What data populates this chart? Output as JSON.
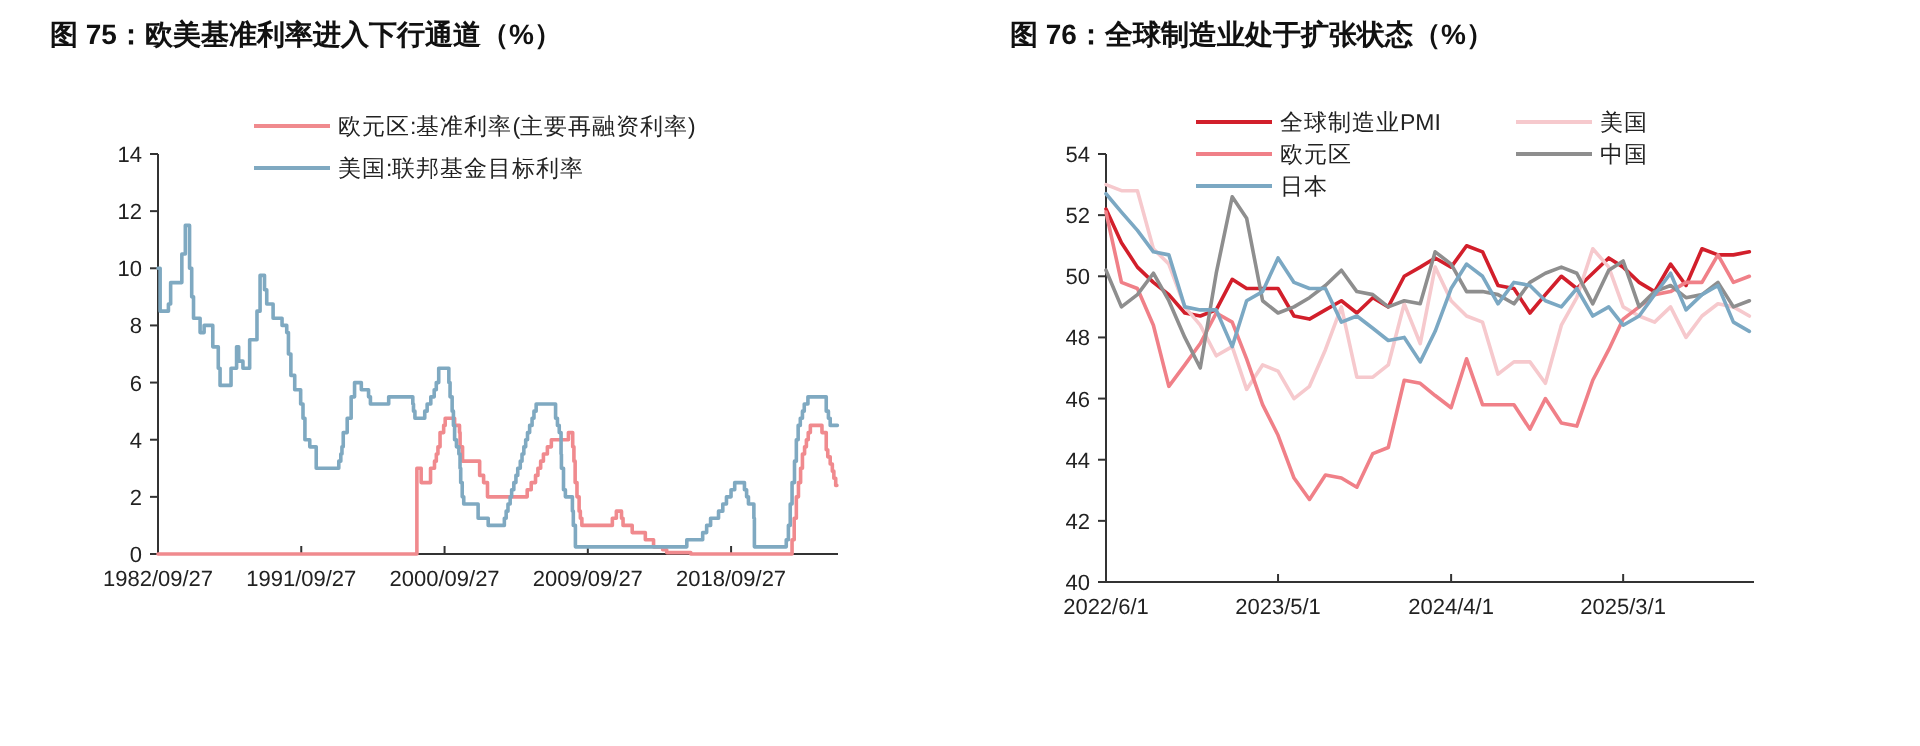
{
  "chart_data": [
    {
      "type": "step",
      "title": "图 75：欧美基准利率进入下行通道（%）",
      "legend": "top",
      "xlim": [
        "1982-09-27",
        "2025-06-15"
      ],
      "ylim": [
        0,
        14
      ],
      "yticks": [
        0,
        2,
        4,
        6,
        8,
        10,
        12,
        14
      ],
      "xticks": [
        {
          "value": "1982-09-27",
          "label": "1982/09/27"
        },
        {
          "value": "1991-09-27",
          "label": "1991/09/27"
        },
        {
          "value": "2000-09-27",
          "label": "2000/09/27"
        },
        {
          "value": "2009-09-27",
          "label": "2009/09/27"
        },
        {
          "value": "2018-09-27",
          "label": "2018/09/27"
        }
      ],
      "series": [
        {
          "name": "欧元区:基准利率(主要再融资利率)",
          "color": "#f08a8e",
          "x": [
            "1982-09-27",
            "1999-01-01",
            "1999-04-09",
            "1999-11-10",
            "2000-02-09",
            "2000-03-22",
            "2000-04-28",
            "2000-06-15",
            "2000-09-06",
            "2000-10-11",
            "2001-05-15",
            "2001-09-05",
            "2001-09-18",
            "2001-11-14",
            "2002-12-11",
            "2003-03-12",
            "2003-06-09",
            "2005-12-06",
            "2006-03-08",
            "2006-06-15",
            "2006-08-09",
            "2006-10-11",
            "2006-12-13",
            "2007-03-14",
            "2007-06-13",
            "2008-07-09",
            "2008-10-15",
            "2008-11-12",
            "2008-12-10",
            "2009-01-21",
            "2009-03-11",
            "2009-04-08",
            "2009-05-13",
            "2011-04-13",
            "2011-07-13",
            "2011-11-09",
            "2011-12-14",
            "2012-07-11",
            "2013-05-08",
            "2013-11-13",
            "2014-06-11",
            "2014-09-10",
            "2016-03-16",
            "2022-07-27",
            "2022-09-14",
            "2022-11-02",
            "2022-12-21",
            "2023-02-08",
            "2023-03-22",
            "2023-05-10",
            "2023-06-21",
            "2023-08-02",
            "2023-09-20",
            "2024-06-12",
            "2024-09-18",
            "2024-10-23",
            "2024-12-18",
            "2025-02-05",
            "2025-03-12",
            "2025-04-23",
            "2025-05-20"
          ],
          "values": [
            0,
            3.0,
            2.5,
            3.0,
            3.25,
            3.5,
            3.75,
            4.25,
            4.5,
            4.75,
            4.5,
            4.25,
            3.75,
            3.25,
            2.75,
            2.5,
            2.0,
            2.25,
            2.5,
            2.75,
            3.0,
            3.25,
            3.5,
            3.75,
            4.0,
            4.25,
            3.75,
            3.25,
            2.5,
            2.0,
            1.5,
            1.25,
            1.0,
            1.25,
            1.5,
            1.25,
            1.0,
            0.75,
            0.5,
            0.25,
            0.15,
            0.05,
            0,
            0.5,
            1.25,
            2.0,
            2.5,
            3.0,
            3.5,
            3.75,
            4.0,
            4.25,
            4.5,
            4.25,
            3.65,
            3.4,
            3.15,
            2.9,
            2.65,
            2.4,
            2.4
          ]
        },
        {
          "name": "美国:联邦基金目标利率",
          "color": "#7fa9c1",
          "x": [
            "1982-09-27",
            "1982-11-15",
            "1983-05-24",
            "1983-07-14",
            "1984-03-27",
            "1984-06-15",
            "1984-09-20",
            "1984-11-08",
            "1984-12-20",
            "1985-05-20",
            "1985-08-20",
            "1986-03-07",
            "1986-07-11",
            "1986-08-21",
            "1987-04-30",
            "1987-09-04",
            "1987-10-22",
            "1988-01-28",
            "1988-06-30",
            "1988-12-15",
            "1989-02-24",
            "1989-06-06",
            "1989-07-27",
            "1989-12-20",
            "1990-07-13",
            "1990-10-29",
            "1990-12-07",
            "1991-02-01",
            "1991-04-30",
            "1991-09-13",
            "1991-11-06",
            "1991-12-20",
            "1992-04-09",
            "1992-09-04",
            "1994-02-04",
            "1994-03-22",
            "1994-04-18",
            "1994-05-17",
            "1994-08-16",
            "1994-11-15",
            "1995-02-01",
            "1995-07-06",
            "1995-12-19",
            "1996-01-31",
            "1997-03-25",
            "1998-09-29",
            "1998-10-15",
            "1998-11-17",
            "1999-06-30",
            "1999-08-24",
            "1999-11-16",
            "2000-02-02",
            "2000-03-21",
            "2000-05-16",
            "2001-01-03",
            "2001-01-31",
            "2001-03-20",
            "2001-04-18",
            "2001-05-15",
            "2001-06-27",
            "2001-08-21",
            "2001-09-17",
            "2001-10-02",
            "2001-11-06",
            "2001-12-11",
            "2002-11-06",
            "2003-06-25",
            "2004-06-30",
            "2004-08-10",
            "2004-09-21",
            "2004-11-10",
            "2004-12-14",
            "2005-02-02",
            "2005-03-22",
            "2005-05-03",
            "2005-06-30",
            "2005-08-09",
            "2005-09-20",
            "2005-11-01",
            "2005-12-13",
            "2006-01-31",
            "2006-03-28",
            "2006-05-10",
            "2006-06-29",
            "2007-09-18",
            "2007-10-31",
            "2007-12-11",
            "2008-01-22",
            "2008-01-30",
            "2008-03-18",
            "2008-04-30",
            "2008-10-08",
            "2008-10-29",
            "2008-12-16",
            "2015-12-16",
            "2016-12-14",
            "2017-03-15",
            "2017-06-14",
            "2017-12-13",
            "2018-03-21",
            "2018-06-13",
            "2018-09-26",
            "2018-12-19",
            "2019-07-31",
            "2019-09-18",
            "2019-10-30",
            "2020-03-03",
            "2020-03-15",
            "2022-03-16",
            "2022-05-04",
            "2022-06-15",
            "2022-07-27",
            "2022-09-21",
            "2022-11-02",
            "2022-12-14",
            "2023-02-01",
            "2023-03-22",
            "2023-05-03",
            "2023-07-26",
            "2024-09-18",
            "2024-11-07",
            "2024-12-18",
            "2025-06-01"
          ],
          "values": [
            10.0,
            8.5,
            8.75,
            9.5,
            10.5,
            11.5,
            10.0,
            9.0,
            8.25,
            7.75,
            8.0,
            7.25,
            6.5,
            5.9,
            6.5,
            7.25,
            6.75,
            6.5,
            7.5,
            8.5,
            9.75,
            9.25,
            8.75,
            8.25,
            8.0,
            7.75,
            7.0,
            6.25,
            5.75,
            5.25,
            4.75,
            4.0,
            3.75,
            3.0,
            3.25,
            3.5,
            3.75,
            4.25,
            4.75,
            5.5,
            6.0,
            5.75,
            5.5,
            5.25,
            5.5,
            5.25,
            5.0,
            4.75,
            5.0,
            5.25,
            5.5,
            5.75,
            6.0,
            6.5,
            6.0,
            5.5,
            5.0,
            4.5,
            4.0,
            3.75,
            3.5,
            3.0,
            2.5,
            2.0,
            1.75,
            1.25,
            1.0,
            1.25,
            1.5,
            1.75,
            2.0,
            2.25,
            2.5,
            2.75,
            3.0,
            3.25,
            3.5,
            3.75,
            4.0,
            4.25,
            4.5,
            4.75,
            5.0,
            5.25,
            4.75,
            4.5,
            4.25,
            3.5,
            3.0,
            2.25,
            2.0,
            1.5,
            1.0,
            0.25,
            0.5,
            0.75,
            1.0,
            1.25,
            1.5,
            1.75,
            2.0,
            2.25,
            2.5,
            2.25,
            2.0,
            1.75,
            1.25,
            0.25,
            0.5,
            1.0,
            1.75,
            2.5,
            3.25,
            4.0,
            4.5,
            4.75,
            5.0,
            5.25,
            5.5,
            5.0,
            4.75,
            4.5,
            4.5
          ]
        }
      ]
    },
    {
      "type": "line",
      "title": "图 76：全球制造业处于扩张状态（%）",
      "legend": "top",
      "xlim": [
        "2022-06-01",
        "2025-11-10"
      ],
      "ylim": [
        40,
        54
      ],
      "yticks": [
        40,
        42,
        44,
        46,
        48,
        50,
        52,
        54
      ],
      "xticks": [
        {
          "value": "2022-06-01",
          "label": "2022/6/1"
        },
        {
          "value": "2023-05-01",
          "label": "2023/5/1"
        },
        {
          "value": "2024-04-01",
          "label": "2024/4/1"
        },
        {
          "value": "2025-03-01",
          "label": "2025/3/1"
        }
      ],
      "x": [
        "2022-06",
        "2022-07",
        "2022-08",
        "2022-09",
        "2022-10",
        "2022-11",
        "2022-12",
        "2023-01",
        "2023-02",
        "2023-03",
        "2023-04",
        "2023-05",
        "2023-06",
        "2023-07",
        "2023-08",
        "2023-09",
        "2023-10",
        "2023-11",
        "2023-12",
        "2024-01",
        "2024-02",
        "2024-03",
        "2024-04",
        "2024-05",
        "2024-06",
        "2024-07",
        "2024-08",
        "2024-09",
        "2024-10",
        "2024-11",
        "2024-12",
        "2025-01",
        "2025-02",
        "2025-03",
        "2025-04",
        "2025-05",
        "2025-06",
        "2025-07",
        "2025-08",
        "2025-09",
        "2025-10",
        "2025-11"
      ],
      "series": [
        {
          "name": "全球制造业PMI",
          "color": "#d21f2b",
          "values": [
            52.2,
            51.1,
            50.3,
            49.8,
            49.4,
            48.8,
            48.7,
            48.9,
            49.9,
            49.6,
            49.6,
            49.6,
            48.7,
            48.6,
            48.9,
            49.2,
            48.8,
            49.3,
            49.0,
            50.0,
            50.3,
            50.6,
            50.3,
            51.0,
            50.8,
            49.7,
            49.6,
            48.8,
            49.4,
            50.0,
            49.6,
            50.1,
            50.6,
            50.3,
            49.8,
            49.5,
            50.4,
            49.7,
            50.9,
            50.7,
            50.7,
            50.8
          ]
        },
        {
          "name": "美国",
          "color": "#f6c9cd",
          "values": [
            53.0,
            52.8,
            52.8,
            50.9,
            50.4,
            49.0,
            48.4,
            47.4,
            47.7,
            46.3,
            47.1,
            46.9,
            46.0,
            46.4,
            47.6,
            49.0,
            46.7,
            46.7,
            47.1,
            49.1,
            47.8,
            50.3,
            49.2,
            48.7,
            48.5,
            46.8,
            47.2,
            47.2,
            46.5,
            48.4,
            49.3,
            50.9,
            50.3,
            49.0,
            48.7,
            48.5,
            49.0,
            48.0,
            48.7,
            49.1,
            49.0,
            48.7
          ]
        },
        {
          "name": "欧元区",
          "color": "#f08088",
          "values": [
            52.1,
            49.8,
            49.6,
            48.4,
            46.4,
            47.1,
            47.8,
            48.8,
            48.5,
            47.3,
            45.8,
            44.8,
            43.4,
            42.7,
            43.5,
            43.4,
            43.1,
            44.2,
            44.4,
            46.6,
            46.5,
            46.1,
            45.7,
            47.3,
            45.8,
            45.8,
            45.8,
            45.0,
            46.0,
            45.2,
            45.1,
            46.6,
            47.6,
            48.6,
            49.0,
            49.4,
            49.5,
            49.8,
            49.8,
            50.7,
            49.8,
            50.0
          ]
        },
        {
          "name": "中国",
          "color": "#8e8e8e",
          "values": [
            50.2,
            49.0,
            49.4,
            50.1,
            49.2,
            48.0,
            47.0,
            50.1,
            52.6,
            51.9,
            49.2,
            48.8,
            49.0,
            49.3,
            49.7,
            50.2,
            49.5,
            49.4,
            49.0,
            49.2,
            49.1,
            50.8,
            50.4,
            49.5,
            49.5,
            49.4,
            49.1,
            49.8,
            50.1,
            50.3,
            50.1,
            49.1,
            50.2,
            50.5,
            49.0,
            49.5,
            49.7,
            49.3,
            49.4,
            49.8,
            49.0,
            49.2
          ]
        },
        {
          "name": "日本",
          "color": "#7ba8c3",
          "values": [
            52.7,
            52.1,
            51.5,
            50.8,
            50.7,
            49.0,
            48.9,
            48.9,
            47.7,
            49.2,
            49.5,
            50.6,
            49.8,
            49.6,
            49.6,
            48.5,
            48.7,
            48.3,
            47.9,
            48.0,
            47.2,
            48.2,
            49.6,
            50.4,
            50.0,
            49.1,
            49.8,
            49.7,
            49.2,
            49.0,
            49.6,
            48.7,
            49.0,
            48.4,
            48.7,
            49.4,
            50.1,
            48.9,
            49.4,
            49.7,
            48.5,
            48.2
          ]
        }
      ]
    }
  ]
}
